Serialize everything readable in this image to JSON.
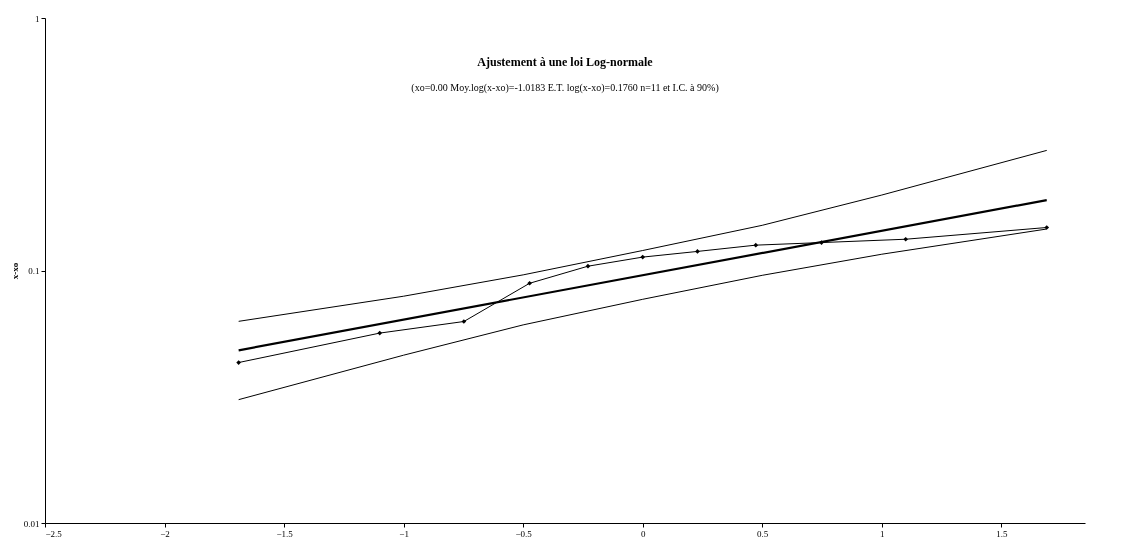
{
  "chart_data": {
    "type": "line",
    "title": "Ajustement à une loi Log-normale",
    "subtitle": "(xo=0.00 Moy.log(x-xo)=-1.0183 E.T. log(x-xo)=0.1760 n=11 et I.C. à 90%)",
    "ylabel": "x-xo",
    "log": "y",
    "grid": false,
    "xlim": [
      -2.5,
      1.85
    ],
    "xticks": [
      -2.5,
      -2,
      -1.5,
      -1,
      -0.5,
      0,
      0.5,
      1,
      1.5
    ],
    "ylim": [
      0.01,
      1
    ],
    "yticks": [
      0.01,
      0.1,
      1
    ],
    "series": [
      {
        "color": "#000000",
        "marker": "diamond",
        "x": [
          -1.69,
          -1.1,
          -0.748,
          -0.473,
          -0.229,
          0,
          0.229,
          0.473,
          0.748,
          1.1,
          1.69
        ],
        "values": [
          0.0432,
          0.0565,
          0.0628,
          0.089,
          0.104,
          0.113,
          0.119,
          0.126,
          0.129,
          0.133,
          0.148
        ]
      },
      {
        "color": "#000000",
        "marker": "none",
        "x": [
          -1.69,
          1.69
        ],
        "values": [
          0.0483,
          0.19
        ]
      },
      {
        "color": "#000000",
        "marker": "none",
        "x": [
          -1.69,
          -1,
          -0.5,
          0,
          0.5,
          1,
          1.69
        ],
        "values": [
          0.0629,
          0.0791,
          0.0961,
          0.12,
          0.151,
          0.199,
          0.299
        ]
      },
      {
        "color": "#000000",
        "marker": "none",
        "x": [
          -1.69,
          -1,
          -0.5,
          0,
          0.5,
          1,
          1.69
        ],
        "values": [
          0.0308,
          0.0462,
          0.0609,
          0.0769,
          0.0957,
          0.116,
          0.146
        ]
      }
    ]
  }
}
